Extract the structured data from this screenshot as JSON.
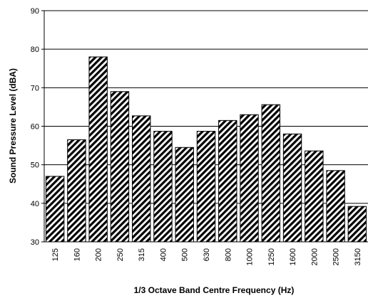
{
  "chart_data": {
    "type": "bar",
    "categories": [
      "125",
      "160",
      "200",
      "250",
      "315",
      "400",
      "500",
      "630",
      "800",
      "1000",
      "1250",
      "1600",
      "2000",
      "2500",
      "3150"
    ],
    "values": [
      47,
      56.5,
      78,
      69,
      62.7,
      58.7,
      54.5,
      58.7,
      61.5,
      63,
      65.6,
      58,
      53.6,
      48.5,
      39.2
    ],
    "xlabel": "1/3 Octave Band Centre Frequency (Hz)",
    "ylabel": "Sound Pressure Level (dBA)",
    "ylim": [
      30,
      90
    ],
    "yticks": [
      30,
      40,
      50,
      60,
      70,
      80,
      90
    ],
    "grid": true,
    "legend": "none",
    "bar_fill": "diagonal-hatch",
    "colors": {
      "hatch": "#000000",
      "bar_background": "#ffffff",
      "bar_outline": "#000000",
      "grid": "#000000"
    }
  }
}
